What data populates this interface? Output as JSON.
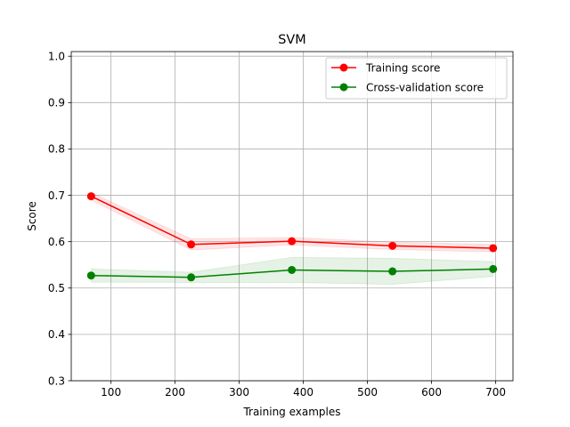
{
  "chart_data": {
    "type": "line",
    "title": "SVM",
    "xlabel": "Training examples",
    "ylabel": "Score",
    "xlim": [
      38,
      727
    ],
    "ylim": [
      0.3,
      1.01
    ],
    "xticks": [
      100,
      200,
      300,
      400,
      500,
      600,
      700
    ],
    "yticks": [
      0.3,
      0.4,
      0.5,
      0.6,
      0.7,
      0.8,
      0.9,
      1.0
    ],
    "grid": true,
    "legend_position": "top-right",
    "x": [
      69,
      225,
      382,
      539,
      696
    ],
    "series": [
      {
        "name": "Training score",
        "color": "#ff0000",
        "values": [
          0.698,
          0.594,
          0.601,
          0.591,
          0.586
        ],
        "band_lower": [
          0.69,
          0.582,
          0.593,
          0.583,
          0.578
        ],
        "band_upper": [
          0.706,
          0.606,
          0.609,
          0.599,
          0.594
        ]
      },
      {
        "name": "Cross-validation score",
        "color": "#008000",
        "values": [
          0.527,
          0.523,
          0.539,
          0.536,
          0.541
        ],
        "band_lower": [
          0.513,
          0.512,
          0.512,
          0.508,
          0.525
        ],
        "band_upper": [
          0.541,
          0.534,
          0.566,
          0.564,
          0.557
        ]
      }
    ]
  }
}
